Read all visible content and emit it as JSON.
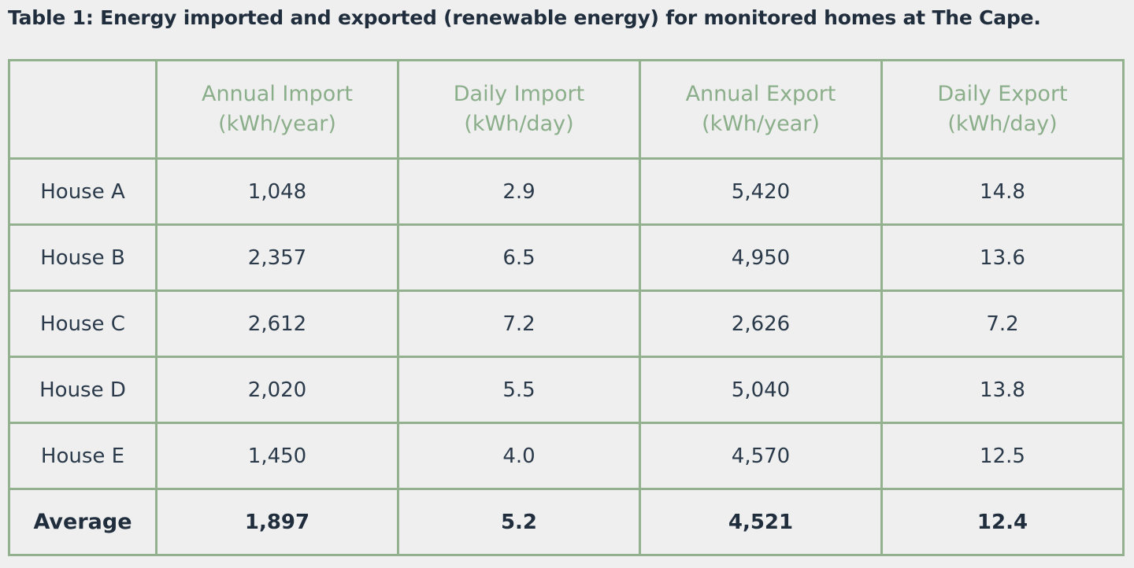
{
  "caption": "Table 1: Energy imported and exported (renewable energy) for monitored homes at The Cape.",
  "table": {
    "headers": [
      {
        "line1": "Annual Import",
        "line2": "(kWh/year)"
      },
      {
        "line1": "Daily Import",
        "line2": "(kWh/day)"
      },
      {
        "line1": "Annual Export",
        "line2": "(kWh/year)"
      },
      {
        "line1": "Daily Export",
        "line2": "(kWh/day)"
      }
    ],
    "rows": [
      {
        "label": "House A",
        "values": [
          "1,048",
          "2.9",
          "5,420",
          "14.8"
        ]
      },
      {
        "label": "House B",
        "values": [
          "2,357",
          "6.5",
          "4,950",
          "13.6"
        ]
      },
      {
        "label": "House C",
        "values": [
          "2,612",
          "7.2",
          "2,626",
          "7.2"
        ]
      },
      {
        "label": "House D",
        "values": [
          "2,020",
          "5.5",
          "5,040",
          "13.8"
        ]
      },
      {
        "label": "House E",
        "values": [
          "1,450",
          "4.0",
          "4,570",
          "12.5"
        ]
      }
    ],
    "average": {
      "label": "Average",
      "values": [
        "1,897",
        "5.2",
        "4,521",
        "12.4"
      ]
    }
  },
  "colors": {
    "border": "#93b08f",
    "header_text": "#8bae8a",
    "body_text": "#2a3a4a",
    "background": "#efefef"
  }
}
